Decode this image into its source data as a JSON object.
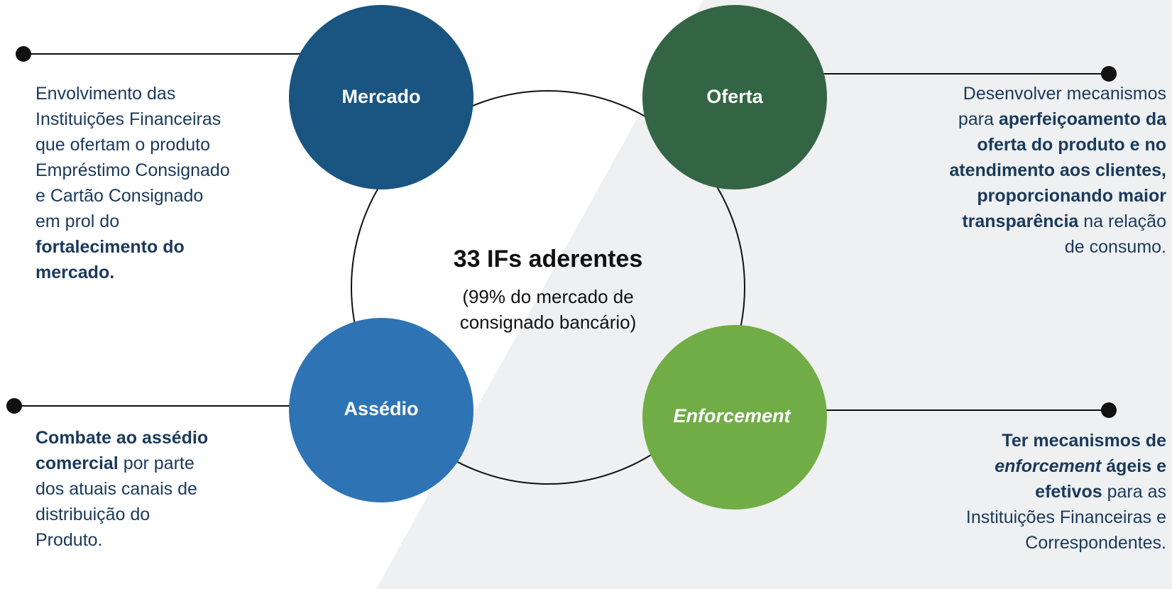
{
  "center": {
    "title": "33 IFs aderentes",
    "lines": [
      "(99% do mercado de",
      "consignado bancário)"
    ]
  },
  "nodes": [
    {
      "label": "Mercado",
      "color": "#1a5480",
      "italic": false
    },
    {
      "label": "Oferta",
      "color": "#336544",
      "italic": false
    },
    {
      "label": "Assédio",
      "color": "#2e74b5",
      "italic": false
    },
    {
      "label": "Enforcement",
      "color": "#70ad47",
      "italic": true
    }
  ],
  "texts": [
    {
      "lines": [
        [
          {
            "t": "Envolvimento das"
          }
        ],
        [
          {
            "t": "Instituições Financeiras"
          }
        ],
        [
          {
            "t": "que ofertam o produto"
          }
        ],
        [
          {
            "t": "Empréstimo Consignado"
          }
        ],
        [
          {
            "t": "e Cartão Consignado"
          }
        ],
        [
          {
            "t": "em prol do"
          }
        ],
        [
          {
            "t": "fortalecimento do",
            "b": true
          }
        ],
        [
          {
            "t": "mercado.",
            "b": true
          }
        ]
      ]
    },
    {
      "lines": [
        [
          {
            "t": "Desenvolver mecanismos"
          }
        ],
        [
          {
            "t": "para "
          },
          {
            "t": "aperfeiçoamento da",
            "b": true
          }
        ],
        [
          {
            "t": "oferta do produto e no",
            "b": true
          }
        ],
        [
          {
            "t": "atendimento aos clientes,",
            "b": true
          }
        ],
        [
          {
            "t": "proporcionando maior",
            "b": true
          }
        ],
        [
          {
            "t": "transparência",
            "b": true
          },
          {
            "t": " na relação"
          }
        ],
        [
          {
            "t": "de consumo."
          }
        ]
      ]
    },
    {
      "lines": [
        [
          {
            "t": "Combate ao assédio",
            "b": true
          }
        ],
        [
          {
            "t": "comercial",
            "b": true
          },
          {
            "t": " por parte"
          }
        ],
        [
          {
            "t": "dos atuais canais de"
          }
        ],
        [
          {
            "t": "distribuição do"
          }
        ],
        [
          {
            "t": "Produto."
          }
        ]
      ]
    },
    {
      "lines": [
        [
          {
            "t": "Ter mecanismos de",
            "b": true
          }
        ],
        [
          {
            "t": "enforcement",
            "b": true,
            "i": true
          },
          {
            "t": " ágeis e",
            "b": true
          }
        ],
        [
          {
            "t": "efetivos",
            "b": true
          },
          {
            "t": " para as"
          }
        ],
        [
          {
            "t": "Instituições Financeiras e"
          }
        ],
        [
          {
            "t": "Correspondentes."
          }
        ]
      ]
    }
  ]
}
